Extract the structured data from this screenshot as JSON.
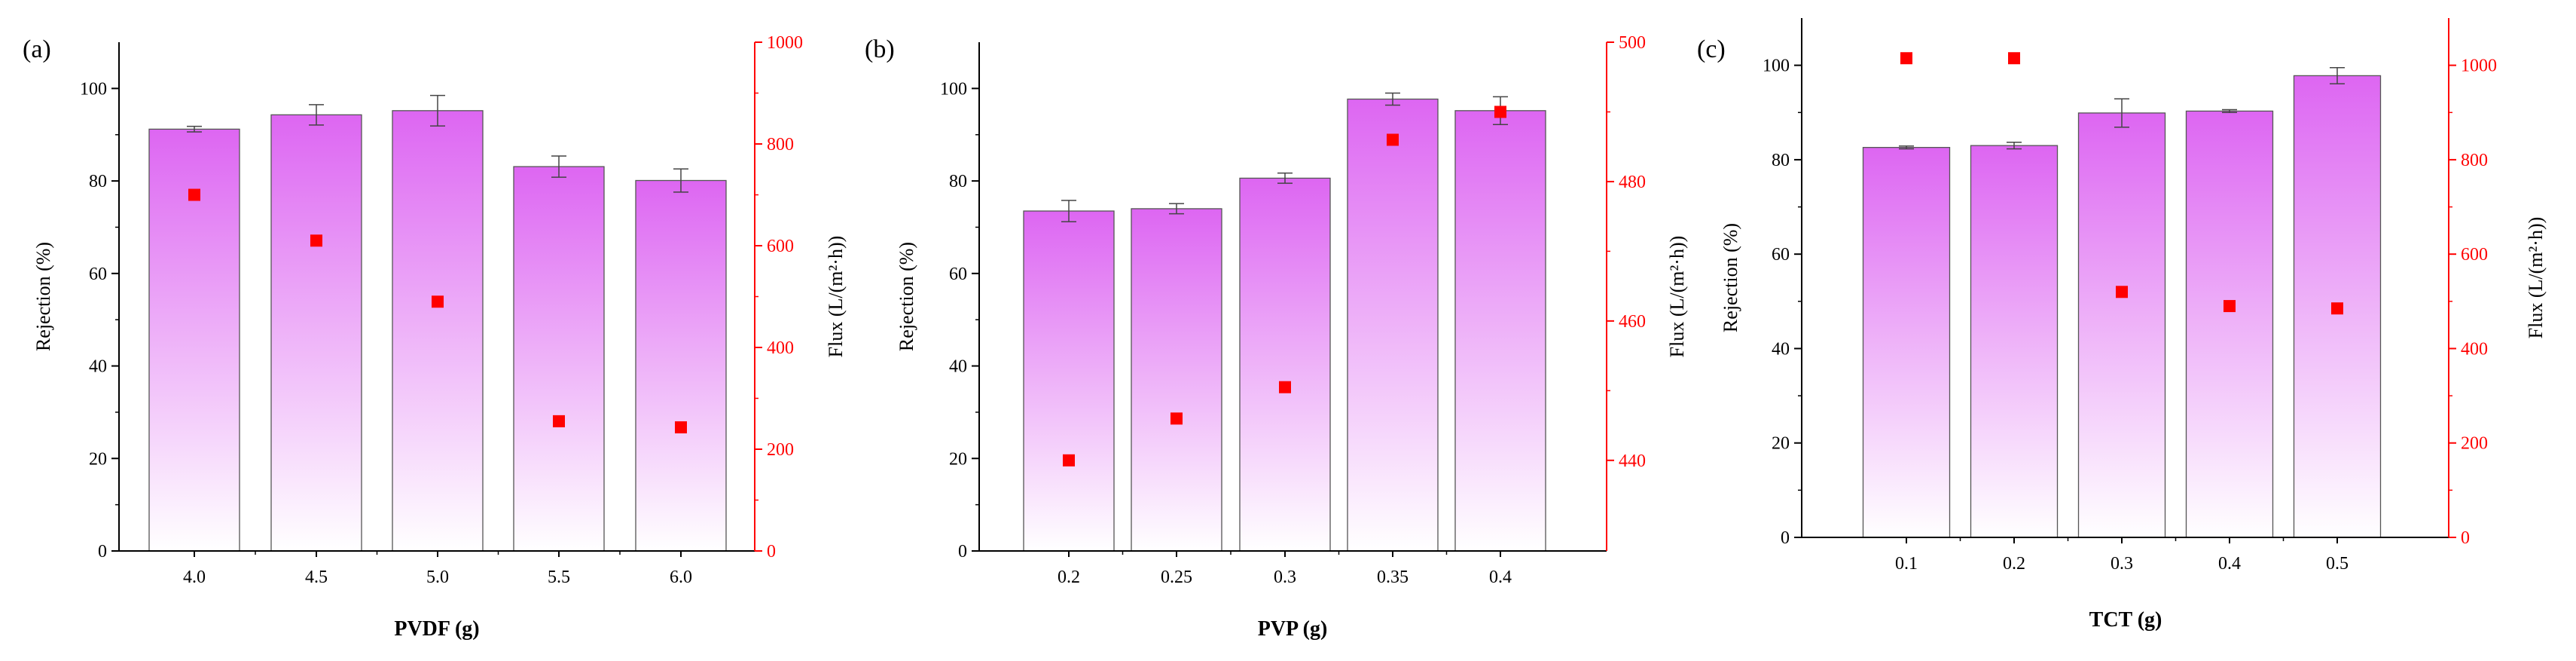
{
  "colors": {
    "bar_top": "#dd66f2",
    "bar_bottom": "#ffffff",
    "flux_marker": "#ff0000",
    "right_axis": "#ff0000",
    "axis": "#000000"
  },
  "chart_data": [
    {
      "type": "bar",
      "panel_label": "(a)",
      "xlabel": "PVDF (g)",
      "ylabel": "Rejection (%)",
      "y2label": "Flux (L/(m²·h))",
      "categories": [
        "4.0",
        "4.5",
        "5.0",
        "5.5",
        "6.0"
      ],
      "ylim": [
        0,
        110
      ],
      "yticks": [
        0,
        20,
        40,
        60,
        80,
        100
      ],
      "y2lim": [
        0,
        1000
      ],
      "y2ticks": [
        0,
        200,
        400,
        600,
        800,
        1000
      ],
      "series": [
        {
          "name": "Rejection",
          "axis": "left",
          "values": [
            91.2,
            94.3,
            95.2,
            83.1,
            80.1
          ],
          "errors": [
            0.6,
            2.2,
            3.3,
            2.3,
            2.5
          ]
        },
        {
          "name": "Flux",
          "axis": "right",
          "kind": "scatter",
          "values": [
            700,
            610,
            490,
            255,
            243
          ]
        }
      ]
    },
    {
      "type": "bar",
      "panel_label": "(b)",
      "xlabel": "PVP  (g)",
      "ylabel": "Rejection (%)",
      "y2label": "Flux (L/(m²·h))",
      "categories": [
        "0.2",
        "0.25",
        "0.3",
        "0.35",
        "0.4"
      ],
      "ylim": [
        0,
        110
      ],
      "yticks": [
        0,
        20,
        40,
        60,
        80,
        100
      ],
      "y2lim": [
        427,
        500
      ],
      "y2ticks": [
        440,
        460,
        480,
        500
      ],
      "series": [
        {
          "name": "Rejection",
          "axis": "left",
          "values": [
            73.5,
            74.0,
            80.6,
            97.7,
            95.2
          ],
          "errors": [
            2.3,
            1.1,
            1.1,
            1.3,
            3.0
          ]
        },
        {
          "name": "Flux",
          "axis": "right",
          "kind": "scatter",
          "values": [
            440,
            446,
            450.5,
            486,
            490
          ]
        }
      ]
    },
    {
      "type": "bar",
      "panel_label": "(c)",
      "xlabel": "TCT  (g)",
      "ylabel": "Rejection (%)",
      "y2label": "Flux (L/(m²·h))",
      "categories": [
        "0.1",
        "0.2",
        "0.3",
        "0.4",
        "0.5"
      ],
      "ylim": [
        0,
        110
      ],
      "yticks": [
        0,
        20,
        40,
        60,
        80,
        100
      ],
      "y2lim": [
        0,
        1100
      ],
      "y2ticks": [
        0,
        200,
        400,
        600,
        800,
        1000
      ],
      "series": [
        {
          "name": "Rejection",
          "axis": "left",
          "values": [
            82.6,
            83.0,
            89.9,
            90.3,
            97.8
          ],
          "errors": [
            0.3,
            0.7,
            3.0,
            0.3,
            1.7
          ]
        },
        {
          "name": "Flux",
          "axis": "right",
          "kind": "scatter",
          "values": [
            1015,
            1015,
            520,
            490,
            485
          ]
        }
      ]
    }
  ]
}
